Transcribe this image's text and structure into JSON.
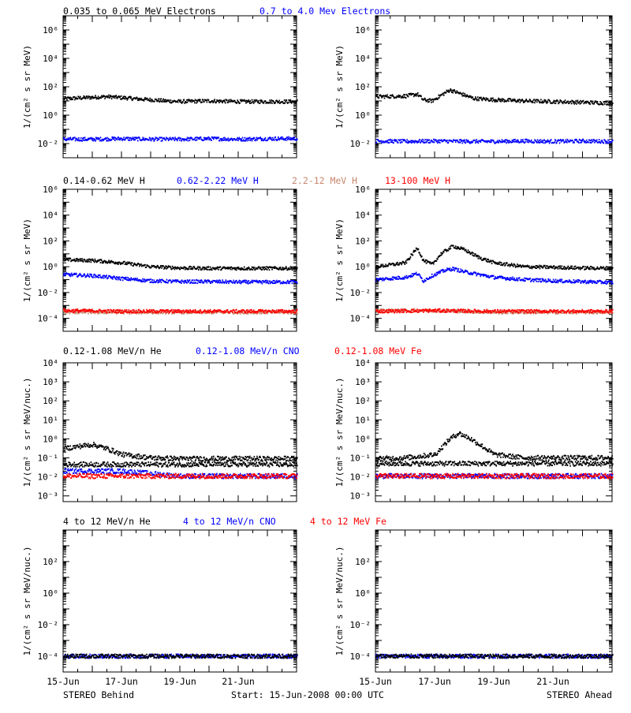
{
  "colors": {
    "black": "#000000",
    "blue": "#0000ff",
    "tan": "#c8876e",
    "red": "#ff0000",
    "grid": "#000000"
  },
  "footer": {
    "left": "STEREO Behind",
    "center": "Start: 15-Jun-2008 00:00 UTC",
    "right": "STEREO Ahead"
  },
  "x_ticks": [
    "15-Jun",
    "17-Jun",
    "19-Jun",
    "21-Jun"
  ],
  "chart_data": [
    {
      "row": 0,
      "type": "scatter",
      "legend": [
        {
          "text": "0.035 to 0.065 MeV Electrons",
          "color": "black"
        },
        {
          "text": "0.7 to 4.0 Mev Electrons",
          "color": "blue"
        }
      ],
      "ylabel": "1/(cm² s sr MeV)",
      "yscale": "log",
      "ylim": [
        0.001,
        10000000
      ],
      "yticks": [
        {
          "v": 0.01,
          "label": "10⁻²"
        },
        {
          "v": 1,
          "label": "10⁰"
        },
        {
          "v": 100,
          "label": "10²"
        },
        {
          "v": 10000,
          "label": "10⁴"
        },
        {
          "v": 1000000,
          "label": "10⁶"
        }
      ],
      "xlim_days": [
        0,
        8
      ],
      "panels": [
        {
          "name": "behind",
          "series": [
            {
              "color": "black",
              "points": [
                [
                  0,
                  14
                ],
                [
                  0.5,
                  16
                ],
                [
                  1,
                  18
                ],
                [
                  1.5,
                  20
                ],
                [
                  2,
                  17
                ],
                [
                  2.5,
                  14
                ],
                [
                  3,
                  12
                ],
                [
                  3.5,
                  10
                ],
                [
                  4,
                  9
                ],
                [
                  5,
                  10
                ],
                [
                  6,
                  9
                ],
                [
                  7,
                  9
                ],
                [
                  8,
                  9
                ]
              ]
            },
            {
              "color": "blue",
              "points": [
                [
                  0,
                  0.02
                ],
                [
                  1,
                  0.02
                ],
                [
                  2,
                  0.022
                ],
                [
                  3,
                  0.02
                ],
                [
                  4,
                  0.02
                ],
                [
                  5,
                  0.022
                ],
                [
                  6,
                  0.02
                ],
                [
                  7,
                  0.022
                ],
                [
                  8,
                  0.022
                ]
              ]
            }
          ]
        },
        {
          "name": "ahead",
          "series": [
            {
              "color": "black",
              "points": [
                [
                  0,
                  20
                ],
                [
                  1,
                  22
                ],
                [
                  1.4,
                  30
                ],
                [
                  1.6,
                  12
                ],
                [
                  1.9,
                  10
                ],
                [
                  2.2,
                  25
                ],
                [
                  2.5,
                  60
                ],
                [
                  2.9,
                  30
                ],
                [
                  3.3,
                  15
                ],
                [
                  4,
                  12
                ],
                [
                  5,
                  10
                ],
                [
                  6,
                  9
                ],
                [
                  7,
                  8
                ],
                [
                  8,
                  7
                ]
              ]
            },
            {
              "color": "blue",
              "points": [
                [
                  0,
                  0.015
                ],
                [
                  1,
                  0.014
                ],
                [
                  2,
                  0.015
                ],
                [
                  3,
                  0.014
                ],
                [
                  4,
                  0.014
                ],
                [
                  5,
                  0.015
                ],
                [
                  6,
                  0.014
                ],
                [
                  7,
                  0.015
                ],
                [
                  8,
                  0.014
                ]
              ]
            }
          ]
        }
      ]
    },
    {
      "row": 1,
      "type": "scatter",
      "legend": [
        {
          "text": "0.14-0.62 MeV H",
          "color": "black"
        },
        {
          "text": "0.62-2.22 MeV H",
          "color": "blue"
        },
        {
          "text": "2.2-12 MeV H",
          "color": "tan"
        },
        {
          "text": "13-100 MeV H",
          "color": "red"
        }
      ],
      "ylabel": "1/(cm² s sr MeV)",
      "yscale": "log",
      "ylim": [
        1e-05,
        1000000
      ],
      "yticks": [
        {
          "v": 0.0001,
          "label": "10⁻⁴"
        },
        {
          "v": 0.01,
          "label": "10⁻²"
        },
        {
          "v": 1,
          "label": "10⁰"
        },
        {
          "v": 100,
          "label": "10²"
        },
        {
          "v": 10000,
          "label": "10⁴"
        },
        {
          "v": 1000000,
          "label": "10⁶"
        }
      ],
      "xlim_days": [
        0,
        8
      ],
      "panels": [
        {
          "name": "behind",
          "series": [
            {
              "color": "black",
              "points": [
                [
                  0,
                  3.5
                ],
                [
                  1,
                  3
                ],
                [
                  2,
                  2
                ],
                [
                  3,
                  1
                ],
                [
                  4,
                  0.8
                ],
                [
                  5,
                  0.75
                ],
                [
                  6,
                  0.75
                ],
                [
                  7,
                  0.75
                ],
                [
                  8,
                  0.75
                ]
              ]
            },
            {
              "color": "blue",
              "points": [
                [
                  0,
                  0.25
                ],
                [
                  1,
                  0.2
                ],
                [
                  2,
                  0.12
                ],
                [
                  3,
                  0.08
                ],
                [
                  4,
                  0.07
                ],
                [
                  5,
                  0.07
                ],
                [
                  6,
                  0.065
                ],
                [
                  7,
                  0.065
                ],
                [
                  8,
                  0.065
                ]
              ]
            },
            {
              "color": "tan",
              "points": [
                [
                  0,
                  0.0003
                ],
                [
                  2,
                  0.0003
                ],
                [
                  4,
                  0.0003
                ],
                [
                  6,
                  0.0003
                ],
                [
                  8,
                  0.0003
                ]
              ]
            },
            {
              "color": "red",
              "points": [
                [
                  0,
                  0.0004
                ],
                [
                  2,
                  0.00035
                ],
                [
                  4,
                  0.00035
                ],
                [
                  6,
                  0.00035
                ],
                [
                  8,
                  0.00035
                ]
              ]
            }
          ]
        },
        {
          "name": "ahead",
          "series": [
            {
              "color": "black",
              "points": [
                [
                  0,
                  1
                ],
                [
                  1,
                  2
                ],
                [
                  1.4,
                  30
                ],
                [
                  1.6,
                  3
                ],
                [
                  1.9,
                  1.5
                ],
                [
                  2.2,
                  10
                ],
                [
                  2.6,
                  40
                ],
                [
                  3,
                  20
                ],
                [
                  3.5,
                  5
                ],
                [
                  4,
                  2
                ],
                [
                  5,
                  1
                ],
                [
                  6,
                  0.9
                ],
                [
                  7,
                  0.8
                ],
                [
                  8,
                  0.75
                ]
              ]
            },
            {
              "color": "blue",
              "points": [
                [
                  0,
                  0.1
                ],
                [
                  1,
                  0.15
                ],
                [
                  1.4,
                  0.3
                ],
                [
                  1.6,
                  0.08
                ],
                [
                  1.9,
                  0.2
                ],
                [
                  2.3,
                  0.5
                ],
                [
                  2.6,
                  0.7
                ],
                [
                  3,
                  0.4
                ],
                [
                  4,
                  0.15
                ],
                [
                  5,
                  0.1
                ],
                [
                  6,
                  0.08
                ],
                [
                  8,
                  0.06
                ]
              ]
            },
            {
              "color": "tan",
              "points": [
                [
                  0,
                  0.0004
                ],
                [
                  2,
                  0.0004
                ],
                [
                  4,
                  0.0003
                ],
                [
                  6,
                  0.0003
                ],
                [
                  8,
                  0.0003
                ]
              ]
            },
            {
              "color": "red",
              "points": [
                [
                  0,
                  0.00035
                ],
                [
                  2,
                  0.0004
                ],
                [
                  4,
                  0.00035
                ],
                [
                  6,
                  0.00035
                ],
                [
                  8,
                  0.00035
                ]
              ]
            }
          ]
        }
      ]
    },
    {
      "row": 2,
      "type": "scatter",
      "legend": [
        {
          "text": "0.12-1.08 MeV/n He",
          "color": "black"
        },
        {
          "text": "0.12-1.08 MeV/n CNO",
          "color": "blue"
        },
        {
          "text": "0.12-1.08 MeV Fe",
          "color": "red"
        }
      ],
      "ylabel": "1/(cm² s sr MeV/nuc.)",
      "yscale": "log",
      "ylim": [
        0.0005,
        10000
      ],
      "yticks": [
        {
          "v": 0.001,
          "label": "10⁻³"
        },
        {
          "v": 0.01,
          "label": "10⁻²"
        },
        {
          "v": 0.1,
          "label": "10⁻¹"
        },
        {
          "v": 1,
          "label": "10⁰"
        },
        {
          "v": 10,
          "label": "10¹"
        },
        {
          "v": 100,
          "label": "10²"
        },
        {
          "v": 1000,
          "label": "10³"
        },
        {
          "v": 10000,
          "label": "10⁴"
        }
      ],
      "xlim_days": [
        0,
        8
      ],
      "panels": [
        {
          "name": "behind",
          "series": [
            {
              "color": "black",
              "points": [
                [
                  0,
                  0.3
                ],
                [
                  0.5,
                  0.4
                ],
                [
                  1,
                  0.5
                ],
                [
                  1.5,
                  0.3
                ],
                [
                  2,
                  0.15
                ],
                [
                  3,
                  0.1
                ],
                [
                  4,
                  0.09
                ],
                [
                  5,
                  0.09
                ],
                [
                  6,
                  0.09
                ],
                [
                  7,
                  0.09
                ],
                [
                  8,
                  0.09
                ]
              ]
            },
            {
              "color": "black",
              "points": [
                [
                  0,
                  0.045
                ],
                [
                  8,
                  0.045
                ]
              ]
            },
            {
              "color": "blue",
              "points": [
                [
                  0,
                  0.02
                ],
                [
                  2,
                  0.02
                ],
                [
                  4,
                  0.011
                ],
                [
                  8,
                  0.011
                ]
              ]
            },
            {
              "color": "red",
              "points": [
                [
                  0,
                  0.011
                ],
                [
                  8,
                  0.011
                ]
              ]
            }
          ]
        },
        {
          "name": "ahead",
          "series": [
            {
              "color": "black",
              "points": [
                [
                  0,
                  0.09
                ],
                [
                  1,
                  0.1
                ],
                [
                  2,
                  0.15
                ],
                [
                  2.5,
                  1
                ],
                [
                  2.8,
                  2
                ],
                [
                  3.2,
                  1
                ],
                [
                  3.6,
                  0.4
                ],
                [
                  4,
                  0.15
                ],
                [
                  5,
                  0.1
                ],
                [
                  6,
                  0.1
                ],
                [
                  7,
                  0.1
                ],
                [
                  8,
                  0.1
                ]
              ]
            },
            {
              "color": "black",
              "points": [
                [
                  0,
                  0.05
                ],
                [
                  8,
                  0.05
                ]
              ]
            },
            {
              "color": "blue",
              "points": [
                [
                  0,
                  0.011
                ],
                [
                  8,
                  0.011
                ]
              ]
            },
            {
              "color": "red",
              "points": [
                [
                  0,
                  0.011
                ],
                [
                  8,
                  0.011
                ]
              ]
            }
          ]
        }
      ]
    },
    {
      "row": 3,
      "type": "scatter",
      "legend": [
        {
          "text": "4 to 12 MeV/n He",
          "color": "black"
        },
        {
          "text": "4 to 12 MeV/n CNO",
          "color": "blue"
        },
        {
          "text": "4 to 12 MeV Fe",
          "color": "red"
        }
      ],
      "ylabel": "1/(cm² s sr MeV/nuc.)",
      "yscale": "log",
      "ylim": [
        1e-05,
        10000
      ],
      "yticks": [
        {
          "v": 0.0001,
          "label": "10⁻⁴"
        },
        {
          "v": 0.01,
          "label": "10⁻²"
        },
        {
          "v": 1,
          "label": "10⁰"
        },
        {
          "v": 100,
          "label": "10²"
        }
      ],
      "xlim_days": [
        0,
        8
      ],
      "panels": [
        {
          "name": "behind",
          "series": [
            {
              "color": "blue",
              "points": [
                [
                  0,
                  0.0001
                ],
                [
                  8,
                  0.0001
                ]
              ]
            },
            {
              "color": "black",
              "points": [
                [
                  0,
                  0.0001
                ],
                [
                  8,
                  0.0001
                ]
              ]
            }
          ]
        },
        {
          "name": "ahead",
          "series": [
            {
              "color": "blue",
              "points": [
                [
                  0,
                  0.0001
                ],
                [
                  8,
                  0.0001
                ]
              ]
            },
            {
              "color": "black",
              "points": [
                [
                  0,
                  0.0001
                ],
                [
                  8,
                  0.0001
                ]
              ]
            }
          ]
        }
      ]
    }
  ]
}
